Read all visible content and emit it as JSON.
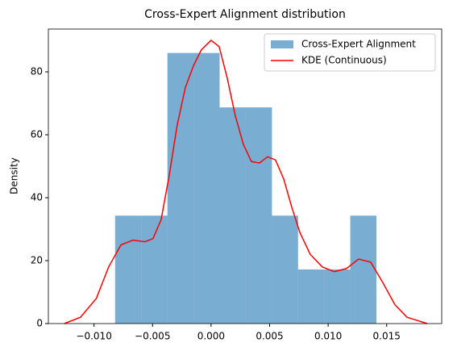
{
  "chart_data": {
    "type": "histogram",
    "title": "Cross-Expert Alignment distribution",
    "ylabel": "Density",
    "xlim": [
      -0.0139,
      0.0197
    ],
    "ylim": [
      0,
      93.6
    ],
    "xticks": [
      {
        "value": -0.01,
        "label": "−0.010"
      },
      {
        "value": -0.005,
        "label": "−0.005"
      },
      {
        "value": 0,
        "label": "0.000"
      },
      {
        "value": 0.005,
        "label": "0.005"
      },
      {
        "value": 0.01,
        "label": "0.010"
      },
      {
        "value": 0.015,
        "label": "0.015"
      }
    ],
    "yticks": [
      0,
      20,
      40,
      60,
      80
    ],
    "legend": "upper right",
    "series": [
      {
        "name": "Cross-Expert Alignment",
        "color": "#1f77b4",
        "type": "histogram",
        "bins": [
          -0.0082,
          -0.00597,
          -0.00373,
          -0.0015,
          0.00073,
          0.00296,
          0.0052,
          0.00743,
          0.00966,
          0.01189,
          0.01412
        ],
        "values": [
          34.3,
          34.3,
          86,
          86,
          68.7,
          68.7,
          34.3,
          17.2,
          17.2,
          34.3
        ]
      },
      {
        "name": "KDE (Continuous)",
        "color": "#ff0000",
        "type": "line",
        "x": [
          -0.01253,
          -0.01116,
          -0.0098,
          -0.00875,
          -0.0077,
          -0.00668,
          -0.00565,
          -0.00496,
          -0.00427,
          -0.00358,
          -0.0029,
          -0.0022,
          -0.0015,
          -0.00083,
          0,
          0.00069,
          0.00138,
          0.00207,
          0.00275,
          0.00344,
          0.00413,
          0.00482,
          0.0055,
          0.0062,
          0.00689,
          0.00758,
          0.00847,
          0.0095,
          0.01054,
          0.01157,
          0.0126,
          0.01364,
          0.01467,
          0.0157,
          0.01674,
          0.01846
        ],
        "values": [
          0,
          2,
          8,
          18,
          25,
          26.5,
          26,
          27,
          33,
          47,
          63,
          75,
          82,
          87,
          90,
          88,
          78,
          66,
          57,
          51.5,
          51,
          53,
          52,
          46,
          37,
          29,
          22,
          18,
          16.5,
          17.5,
          20.5,
          19.5,
          13,
          6,
          2,
          0
        ]
      }
    ]
  }
}
